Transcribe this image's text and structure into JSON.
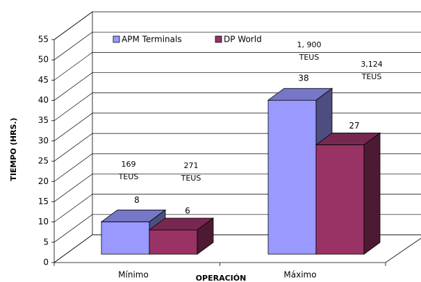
{
  "chart_data": {
    "type": "bar3d",
    "y_label": "TIEMPO (HRS.)",
    "x_label": "OPERACIÓN",
    "categories": [
      "Mínimo",
      "Máximo"
    ],
    "series": [
      {
        "name": "APM Terminals",
        "color": "#9999ff",
        "values": [
          8,
          38
        ]
      },
      {
        "name": "DP World",
        "color": "#993366",
        "values": [
          6,
          27
        ]
      }
    ],
    "ylim": [
      0,
      55
    ],
    "yticks": [
      0,
      5,
      10,
      15,
      20,
      25,
      30,
      35,
      40,
      45,
      50,
      55
    ],
    "grid": true,
    "annotations": [
      [
        "169",
        "TEUS"
      ],
      [
        "271",
        "TEUS"
      ],
      [
        "1, 900",
        "TEUS"
      ],
      [
        "3,124",
        "TEUS"
      ]
    ]
  }
}
